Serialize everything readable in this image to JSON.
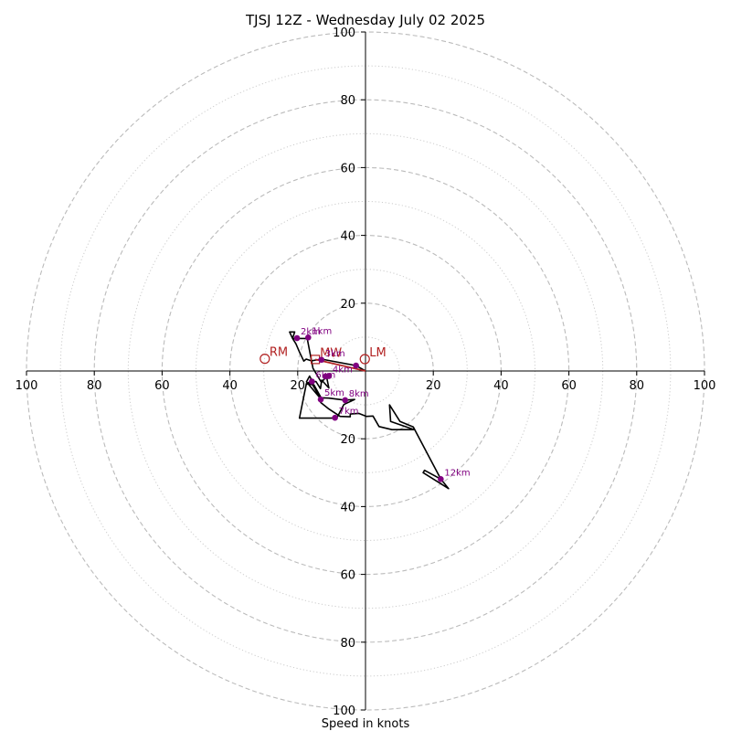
{
  "chart_data": {
    "type": "scatter",
    "title": "TJSJ 12Z - Wednesday July 02 2025",
    "xlabel": "Speed in knots",
    "ylabel": "",
    "xlim": [
      -100,
      100
    ],
    "ylim": [
      -100,
      100
    ],
    "x_ticks": [
      "100",
      "80",
      "60",
      "40",
      "20",
      "20",
      "40",
      "60",
      "80",
      "100"
    ],
    "y_ticks": [
      "100",
      "80",
      "60",
      "40",
      "20",
      "20",
      "40",
      "60",
      "80",
      "100"
    ],
    "rings_major": [
      20,
      40,
      60,
      80,
      100
    ],
    "rings_minor": [
      10,
      30,
      50,
      70,
      90
    ],
    "grid": true,
    "colors": {
      "trace": "#000000",
      "height_marker": "#800080",
      "storm_motion": "#b22222",
      "grid": "#bbbbbb"
    },
    "hodograph_trace": [
      [
        0,
        0
      ],
      [
        -2.8,
        1.6
      ],
      [
        -13,
        3.5
      ],
      [
        -16,
        3
      ],
      [
        -17.5,
        3.5
      ],
      [
        -18.2,
        2.9
      ],
      [
        -19.5,
        5.6
      ],
      [
        -20.5,
        8
      ],
      [
        -21.5,
        9.6
      ],
      [
        -20.9,
        11.5
      ],
      [
        -22.4,
        11.5
      ],
      [
        -21.5,
        9.6
      ],
      [
        -17.2,
        9.6
      ],
      [
        -15.5,
        0.8
      ],
      [
        -13,
        -3.4
      ],
      [
        -11.5,
        -1.6
      ],
      [
        -10.8,
        -5
      ],
      [
        -12.9,
        -2.7
      ],
      [
        -13.3,
        -5.2
      ],
      [
        -14.6,
        -3.1
      ],
      [
        -15.6,
        -3.2
      ],
      [
        -16.5,
        -1.5
      ],
      [
        -17.4,
        -3.2
      ],
      [
        -14.4,
        -6.8
      ],
      [
        -13.1,
        -8.3
      ],
      [
        -16.2,
        -3.1
      ],
      [
        -17.5,
        -3.8
      ],
      [
        -15.2,
        -4.1
      ],
      [
        -13.1,
        -7.9
      ],
      [
        -10.8,
        -8
      ],
      [
        -6,
        -8.6
      ],
      [
        -3.2,
        -8.4
      ],
      [
        -6.4,
        -9.9
      ],
      [
        -8.5,
        -13.9
      ],
      [
        -19.5,
        -13.9
      ],
      [
        -17.5,
        -4
      ],
      [
        -16,
        -3.4
      ],
      [
        -13.2,
        -8.1
      ],
      [
        -13.2,
        -9.3
      ],
      [
        -10.8,
        -11.2
      ],
      [
        -7.5,
        -13.4
      ],
      [
        -4.5,
        -13.5
      ],
      [
        -4.5,
        -12.7
      ],
      [
        -2,
        -12.5
      ],
      [
        0.3,
        -13.4
      ],
      [
        2.2,
        -13.3
      ],
      [
        4,
        -16.4
      ],
      [
        7.8,
        -17.3
      ],
      [
        14.4,
        -17.3
      ],
      [
        7.4,
        -14.9
      ],
      [
        7.1,
        -10
      ],
      [
        10.2,
        -14.9
      ],
      [
        14.1,
        -16.5
      ],
      [
        22.2,
        -31.9
      ],
      [
        24.5,
        -34.7
      ],
      [
        17,
        -30
      ],
      [
        17.4,
        -29.3
      ],
      [
        22.2,
        -31.9
      ]
    ],
    "height_points": [
      {
        "label": "",
        "x": -2.8,
        "y": 1.6
      },
      {
        "label": "1km",
        "x": -16.9,
        "y": 9.9
      },
      {
        "label": "2km",
        "x": -20.2,
        "y": 9.7
      },
      {
        "label": "3km",
        "x": -13,
        "y": 3.3
      },
      {
        "label": "4km",
        "x": -10.8,
        "y": -1.5
      },
      {
        "label": "5km",
        "x": -13.2,
        "y": -8.4
      },
      {
        "label": "6km",
        "x": -15.8,
        "y": -3.1
      },
      {
        "label": "7km",
        "x": -9,
        "y": -13.8
      },
      {
        "label": "8km",
        "x": -6,
        "y": -8.6
      },
      {
        "label": "",
        "x": -11.8,
        "y": -1.6
      },
      {
        "label": "12km",
        "x": 22.2,
        "y": -31.9
      }
    ],
    "storm_motion": [
      {
        "label": "RM",
        "x": -29.7,
        "y": 3.6,
        "marker": "circle"
      },
      {
        "label": "LM",
        "x": -0.2,
        "y": 3.5,
        "marker": "circle"
      },
      {
        "label": "MW",
        "x": -14.8,
        "y": 3.4,
        "marker": "square"
      }
    ],
    "storm_vector": {
      "from": [
        -14.8,
        3.4
      ],
      "to": [
        0,
        0
      ]
    }
  }
}
